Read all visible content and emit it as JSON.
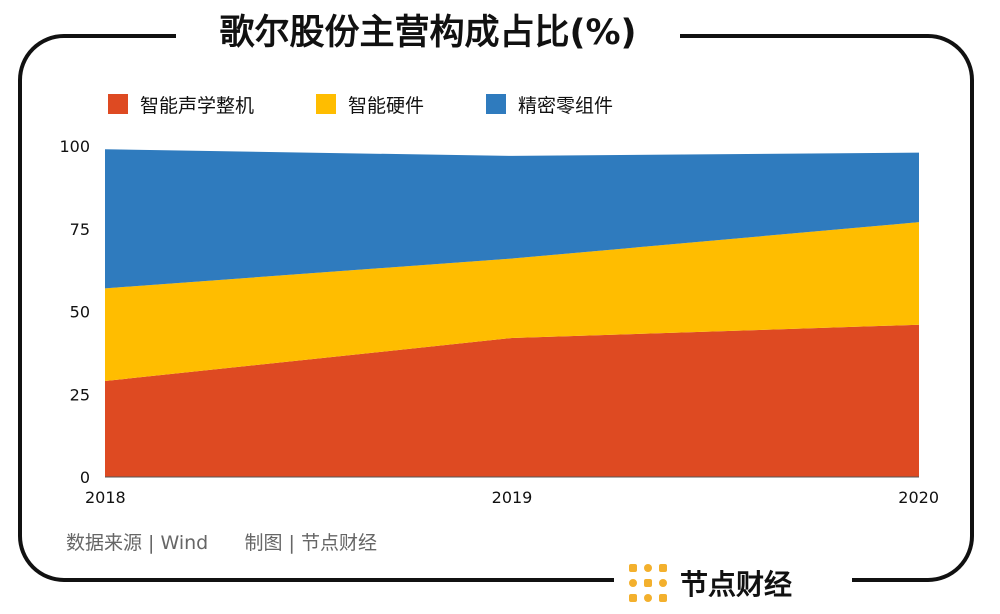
{
  "title": "歌尔股份主营构成占比(%)",
  "source_text": "数据来源 | Wind      制图 | 节点财经",
  "brand": {
    "name": "节点财经",
    "logo_color": "#F3B02D"
  },
  "chart_data": {
    "type": "area",
    "stacked": true,
    "title": "歌尔股份主营构成占比(%)",
    "x": [
      "2018",
      "2019",
      "2020"
    ],
    "series": [
      {
        "name": "智能声学整机",
        "color": "#DE4A22",
        "values": [
          29,
          42,
          46
        ]
      },
      {
        "name": "智能硬件",
        "color": "#FFBD00",
        "values": [
          28,
          24,
          31
        ]
      },
      {
        "name": "精密零组件",
        "color": "#2F7BBE",
        "values": [
          42,
          31,
          21
        ]
      }
    ],
    "ylim": [
      0,
      100
    ],
    "yticks": [
      0,
      25,
      50,
      75,
      100
    ],
    "grid": false,
    "legend_position": "top-left"
  }
}
